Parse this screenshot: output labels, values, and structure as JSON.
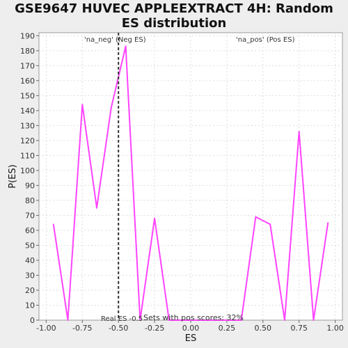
{
  "chart_data": {
    "type": "line",
    "title_lines": [
      "GSE9647 HUVEC APPLEEXTRACT 4H: Random",
      "ES distribution"
    ],
    "xlabel": "ES",
    "ylabel": "P(ES)",
    "xlim": [
      -1.05,
      1.05
    ],
    "ylim": [
      0,
      192
    ],
    "x_ticks": [
      -1.0,
      -0.75,
      -0.5,
      -0.25,
      0.0,
      0.25,
      0.5,
      0.75,
      1.0
    ],
    "x_tick_labels": [
      "-1.00",
      "-0.75",
      "-0.50",
      "-0.25",
      "0.00",
      "0.25",
      "0.50",
      "0.75",
      "1.00"
    ],
    "y_ticks": [
      0,
      10,
      20,
      30,
      40,
      50,
      60,
      70,
      80,
      90,
      100,
      110,
      120,
      130,
      140,
      150,
      160,
      170,
      180,
      190
    ],
    "grid": true,
    "series": [
      {
        "color": "#ff44ff",
        "x": [
          -0.95,
          -0.85,
          -0.75,
          -0.65,
          -0.55,
          -0.45,
          -0.35,
          -0.25,
          -0.15,
          -0.05,
          0.05,
          0.15,
          0.25,
          0.35,
          0.45,
          0.55,
          0.65,
          0.75,
          0.85,
          0.95
        ],
        "y": [
          64,
          0,
          144,
          75,
          142,
          183,
          0,
          68,
          0,
          0,
          0,
          0,
          0,
          0,
          69,
          64,
          0,
          126,
          0,
          65
        ]
      }
    ],
    "real_es": -0.5,
    "annotations": {
      "neg_label": "'na_neg' (Neg ES)",
      "pos_label": "'na_pos' (Pos ES)",
      "real_es_label": "Real ES -0.5",
      "pos_scores_label": "Sets with pos scores: 32%"
    },
    "colors": {
      "neg": "#4444cc",
      "pos": "#dd4444",
      "real_es_line": "#333333",
      "plot_bg": "#ffffff",
      "grid": "#dddddd"
    }
  }
}
